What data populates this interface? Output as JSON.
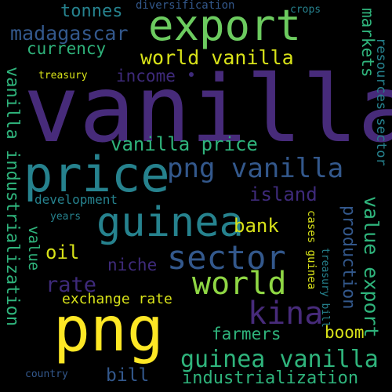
{
  "palette": {
    "background": "#000000",
    "deep_purple": "#472B7A",
    "purple": "#3E2A7A",
    "blue": "#33588C",
    "teal": "#26828E",
    "green": "#2FB47C",
    "light_green": "#6CCB5F",
    "lime": "#8FD744",
    "yellow": "#D8E219",
    "bright_yellow": "#FDE725"
  },
  "words": [
    {
      "text": "vanilla"
    },
    {
      "text": "price"
    },
    {
      "text": "png"
    },
    {
      "text": "export"
    },
    {
      "text": "guinea"
    },
    {
      "text": "sector"
    },
    {
      "text": "world"
    },
    {
      "text": "png vanilla"
    },
    {
      "text": "kina"
    },
    {
      "text": "guinea vanilla"
    },
    {
      "text": "madagascar"
    },
    {
      "text": "world vanilla"
    },
    {
      "text": "vanilla price"
    },
    {
      "text": "vanilla industrialization"
    },
    {
      "text": "value export"
    },
    {
      "text": "industrialization"
    },
    {
      "text": "tonnes"
    },
    {
      "text": "currency"
    },
    {
      "text": "income"
    },
    {
      "text": "island"
    },
    {
      "text": "bank"
    },
    {
      "text": "rate"
    },
    {
      "text": "oil"
    },
    {
      "text": "niche"
    },
    {
      "text": "farmers"
    },
    {
      "text": "boom"
    },
    {
      "text": "bill"
    },
    {
      "text": "exchange rate"
    },
    {
      "text": "markets"
    },
    {
      "text": "production"
    },
    {
      "text": "value"
    },
    {
      "text": "development"
    },
    {
      "text": "diversification"
    },
    {
      "text": "crops"
    },
    {
      "text": "treasury"
    },
    {
      "text": "years"
    },
    {
      "text": "country"
    },
    {
      "text": "resources sector"
    },
    {
      "text": "cases guinea"
    },
    {
      "text": "treasury bill"
    }
  ]
}
